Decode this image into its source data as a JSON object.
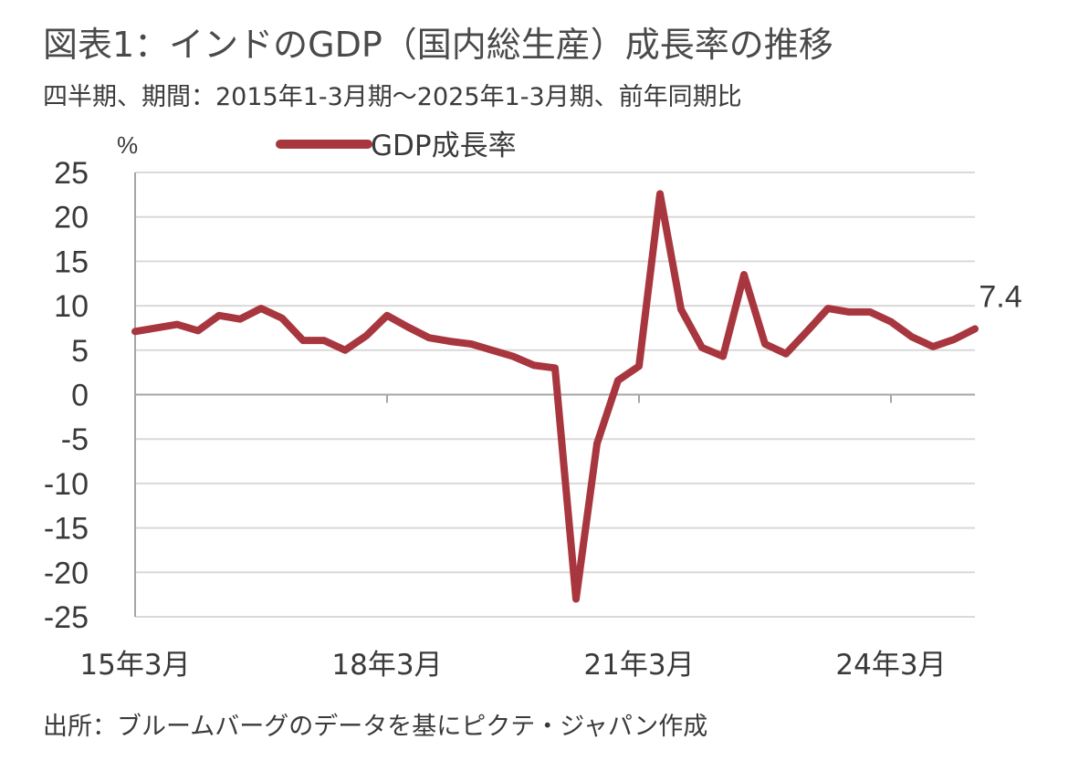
{
  "title": "図表1：インドのGDP（国内総生産）成長率の推移",
  "subtitle": "四半期、期間：2015年1-3月期～2025年1-3月期、前年同期比",
  "source": "出所：ブルームバーグのデータを基にピクテ・ジャパン作成",
  "chart_data": {
    "type": "line",
    "title": "図表1：インドのGDP（国内総生産）成長率の推移",
    "subtitle": "四半期、期間：2015年1-3月期～2025年1-3月期、前年同期比",
    "ylabel": "%",
    "ylim": [
      -25,
      25
    ],
    "yticks": [
      25,
      20,
      15,
      10,
      5,
      0,
      -5,
      -10,
      -15,
      -20,
      -25
    ],
    "ytick_labels": [
      "25",
      "20",
      "15",
      "10",
      "5",
      "0",
      "-5",
      "-10",
      "-15",
      "-20",
      "-25"
    ],
    "xticks": [
      "15年3月",
      "18年3月",
      "21年3月",
      "24年3月"
    ],
    "x": [
      "15年3月",
      "15年6月",
      "15年9月",
      "15年12月",
      "16年3月",
      "16年6月",
      "16年9月",
      "16年12月",
      "17年3月",
      "17年6月",
      "17年9月",
      "17年12月",
      "18年3月",
      "18年6月",
      "18年9月",
      "18年12月",
      "19年3月",
      "19年6月",
      "19年9月",
      "19年12月",
      "20年3月",
      "20年6月",
      "20年9月",
      "20年12月",
      "21年3月",
      "21年6月",
      "21年9月",
      "21年12月",
      "22年3月",
      "22年6月",
      "22年9月",
      "22年12月",
      "23年3月",
      "23年6月",
      "23年9月",
      "23年12月",
      "24年3月",
      "24年6月",
      "24年9月",
      "24年12月",
      "25年3月"
    ],
    "series": [
      {
        "name": "GDP成長率",
        "color": "#a8363f",
        "values": [
          7.1,
          7.5,
          7.9,
          7.2,
          8.9,
          8.5,
          9.7,
          8.6,
          6.1,
          6.1,
          5.0,
          6.6,
          8.9,
          7.6,
          6.4,
          6.0,
          5.7,
          5.0,
          4.3,
          3.3,
          3.0,
          -23.0,
          -5.5,
          1.6,
          3.2,
          22.6,
          9.6,
          5.3,
          4.3,
          13.5,
          5.7,
          4.6,
          7.1,
          9.7,
          9.3,
          9.3,
          8.2,
          6.5,
          5.4,
          6.2,
          7.4
        ]
      }
    ],
    "last_value_label": "7.4",
    "legend": "top-center",
    "grid": true
  }
}
